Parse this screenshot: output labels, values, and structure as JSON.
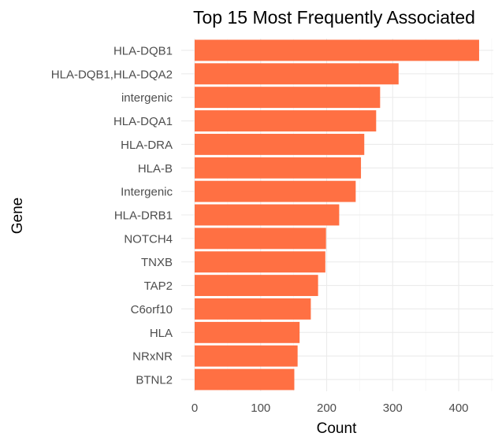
{
  "colors": {
    "bar": "#FF7043",
    "grid_major": "#ebebeb",
    "grid_minor": "#f3f3f3",
    "tick_text": "#4d4d4d",
    "title_text": "#000000",
    "background": "#ffffff"
  },
  "chart_data": {
    "type": "bar",
    "orientation": "horizontal",
    "title": "Top 15 Most Frequently Associated",
    "xlabel": "Count",
    "ylabel": "Gene",
    "categories": [
      "HLA-DQB1",
      "HLA-DQB1,HLA-DQA2",
      "intergenic",
      "HLA-DQA1",
      "HLA-DRA",
      "HLA-B",
      "Intergenic",
      "HLA-DRB1",
      "NOTCH4",
      "TNXB",
      "TAP2",
      "C6orf10",
      "HLA",
      "NRxNR",
      "BTNL2"
    ],
    "values": [
      431,
      309,
      281,
      275,
      257,
      252,
      244,
      219,
      199,
      198,
      187,
      176,
      159,
      156,
      151
    ],
    "xlim": [
      0,
      450
    ],
    "xticks": [
      0,
      100,
      200,
      300,
      400
    ],
    "grid": true,
    "legend": "none"
  }
}
